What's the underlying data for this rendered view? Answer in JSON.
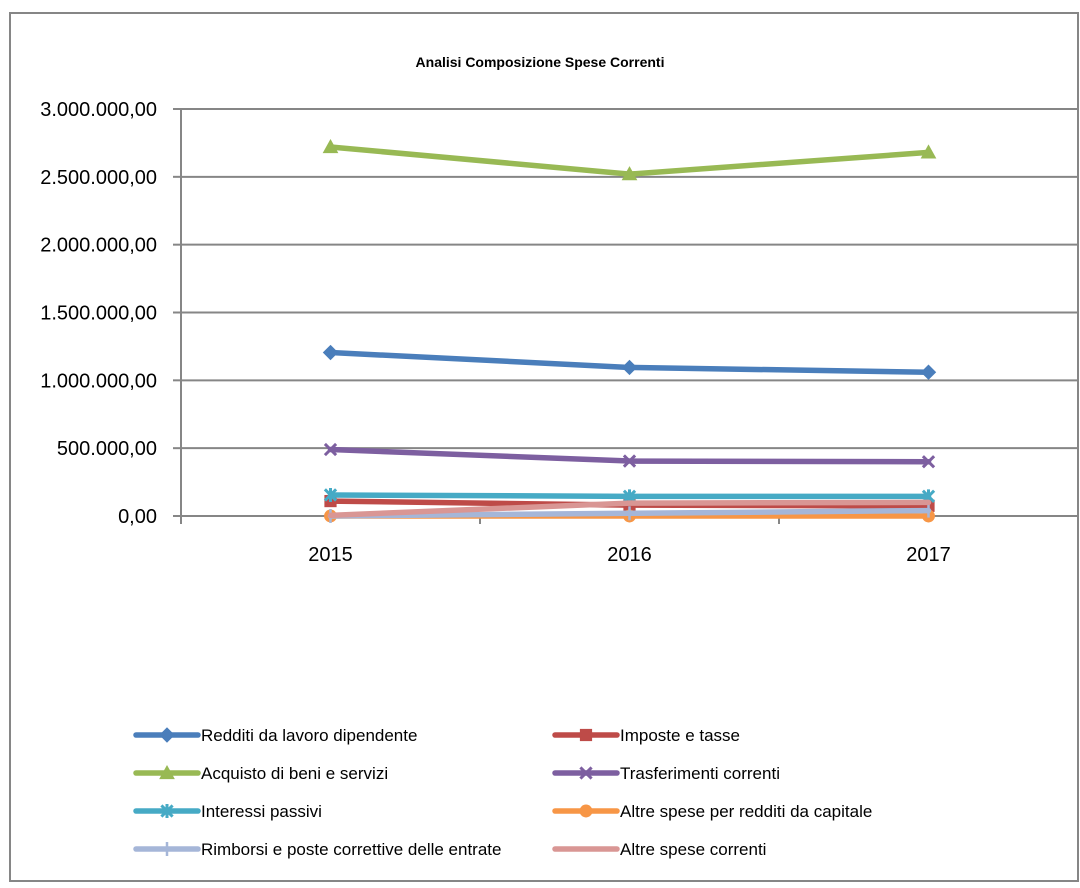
{
  "chart_data": {
    "type": "line",
    "title": "Analisi Composizione Spese Correnti",
    "xlabel": "",
    "ylabel": "",
    "categories": [
      "2015",
      "2016",
      "2017"
    ],
    "ylim": [
      0,
      3000000
    ],
    "yticks": [
      0,
      500000,
      1000000,
      1500000,
      2000000,
      2500000,
      3000000
    ],
    "ytick_labels": [
      "0,00",
      "500.000,00",
      "1.000.000,00",
      "1.500.000,00",
      "2.000.000,00",
      "2.500.000,00",
      "3.000.000,00"
    ],
    "grid": true,
    "legend_position": "bottom",
    "series": [
      {
        "name": "Redditi da lavoro dipendente",
        "values": [
          1205000,
          1095000,
          1060000
        ],
        "color": "#4A7EBB",
        "marker": "diamond"
      },
      {
        "name": "Imposte e tasse",
        "values": [
          110000,
          80000,
          75000
        ],
        "color": "#BE4B48",
        "marker": "square"
      },
      {
        "name": "Acquisto di beni e servizi",
        "values": [
          2720000,
          2520000,
          2680000
        ],
        "color": "#98B954",
        "marker": "triangle"
      },
      {
        "name": "Trasferimenti correnti",
        "values": [
          490000,
          405000,
          400000
        ],
        "color": "#7D5FA0",
        "marker": "x"
      },
      {
        "name": "Interessi passivi",
        "values": [
          155000,
          145000,
          145000
        ],
        "color": "#46AAC5",
        "marker": "star"
      },
      {
        "name": "Altre spese per redditi da capitale",
        "values": [
          0,
          0,
          0
        ],
        "color": "#F79646",
        "marker": "circle"
      },
      {
        "name": "Rimborsi e poste correttive delle entrate",
        "values": [
          0,
          20000,
          40000
        ],
        "color": "#A5B6D8",
        "marker": "plus"
      },
      {
        "name": "Altre spese correnti",
        "values": [
          5000,
          95000,
          100000
        ],
        "color": "#D99694",
        "marker": "none"
      }
    ]
  }
}
